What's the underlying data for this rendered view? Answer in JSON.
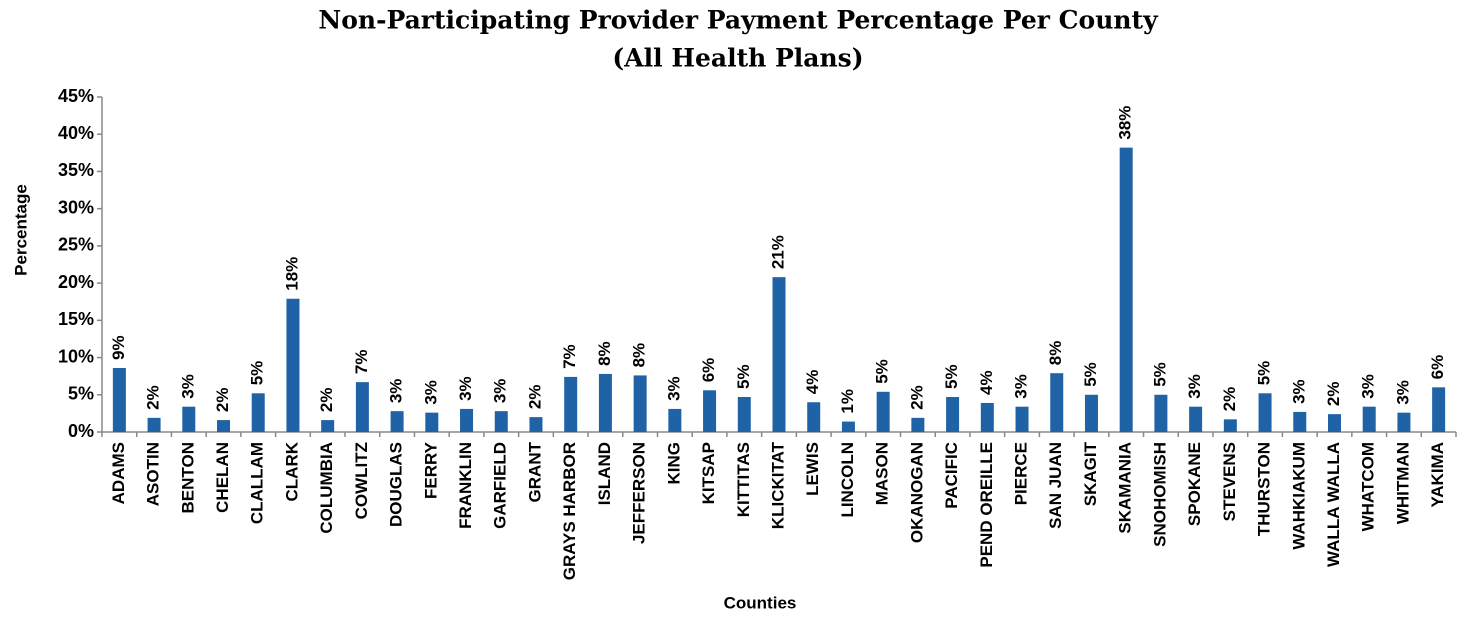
{
  "chart_data": {
    "type": "bar",
    "title": "Non-Participating Provider Payment Percentage Per County",
    "subtitle": "(All Health Plans)",
    "x_label": "Counties",
    "y_label": "Percentage",
    "categories": [
      "ADAMS",
      "ASOTIN",
      "BENTON",
      "CHELAN",
      "CLALLAM",
      "CLARK",
      "COLUMBIA",
      "COWLITZ",
      "DOUGLAS",
      "FERRY",
      "FRANKLIN",
      "GARFIELD",
      "GRANT",
      "GRAYS HARBOR",
      "ISLAND",
      "JEFFERSON",
      "KING",
      "KITSAP",
      "KITTITAS",
      "KLICKITAT",
      "LEWIS",
      "LINCOLN",
      "MASON",
      "OKANOGAN",
      "PACIFIC",
      "PEND OREILLE",
      "PIERCE",
      "SAN JUAN",
      "SKAGIT",
      "SKAMANIA",
      "SNOHOMISH",
      "SPOKANE",
      "STEVENS",
      "THURSTON",
      "WAHKIAKUM",
      "WALLA WALLA",
      "WHATCOM",
      "WHITMAN",
      "YAKIMA"
    ],
    "values": [
      8.6,
      1.9,
      3.4,
      1.6,
      5.2,
      17.9,
      1.6,
      6.7,
      2.8,
      2.6,
      3.1,
      2.8,
      2.0,
      7.4,
      7.8,
      7.6,
      3.1,
      5.6,
      4.7,
      20.8,
      4.0,
      1.4,
      5.4,
      1.9,
      4.7,
      3.9,
      3.4,
      7.9,
      5.0,
      38.2,
      5.0,
      3.4,
      1.7,
      5.2,
      2.7,
      2.4,
      3.4,
      2.6,
      6.0
    ],
    "value_labels": [
      "9%",
      "2%",
      "3%",
      "2%",
      "5%",
      "18%",
      "2%",
      "7%",
      "3%",
      "3%",
      "3%",
      "3%",
      "2%",
      "7%",
      "8%",
      "8%",
      "3%",
      "6%",
      "5%",
      "21%",
      "4%",
      "1%",
      "5%",
      "2%",
      "5%",
      "4%",
      "3%",
      "8%",
      "5%",
      "38%",
      "5%",
      "3%",
      "2%",
      "5%",
      "3%",
      "2%",
      "3%",
      "3%",
      "6%"
    ],
    "color": "#1f63a6",
    "ylim": [
      0,
      45
    ],
    "yticks": [
      {
        "value": 0,
        "label": "0%"
      },
      {
        "value": 5,
        "label": "5%"
      },
      {
        "value": 10,
        "label": "10%"
      },
      {
        "value": 15,
        "label": "15%"
      },
      {
        "value": 20,
        "label": "20%"
      },
      {
        "value": 25,
        "label": "25%"
      },
      {
        "value": 30,
        "label": "30%"
      },
      {
        "value": 35,
        "label": "35%"
      },
      {
        "value": 40,
        "label": "40%"
      },
      {
        "value": 45,
        "label": "45%"
      }
    ],
    "grid": false
  }
}
